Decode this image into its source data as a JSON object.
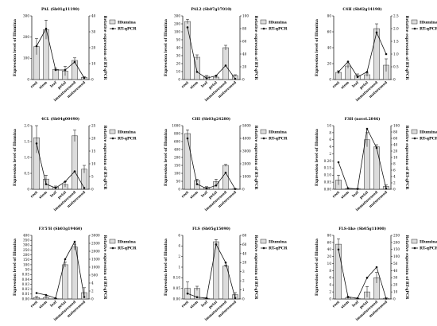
{
  "categories": [
    "root",
    "stem",
    "leaf",
    "petal",
    "immatureseed",
    "matureseed"
  ],
  "left_axis_label": "Expression level of Illumina",
  "right_axis_label": "Relative expression of RT-qPCR",
  "legend": {
    "bar": "Illumina",
    "line": "RT-qPCR"
  },
  "colors": {
    "bar": "#dcdcdc",
    "bar_stroke": "#333333",
    "line": "#111111"
  },
  "chart_data": [
    {
      "type": "bar",
      "title": "PAL (Sb01g11190)",
      "categories": [
        "root",
        "stem",
        "leaf",
        "petal",
        "immatureseed",
        "matureseed"
      ],
      "left_ticks": [
        0,
        100,
        200,
        300
      ],
      "left_ticks_display": [
        "0",
        "100",
        "200",
        "300"
      ],
      "right_ticks": [
        0,
        10,
        20,
        30,
        40
      ],
      "right_ticks_display": [
        "0",
        "10",
        "20",
        "30",
        "40"
      ],
      "series": [
        {
          "name": "Illumina",
          "axis": "left",
          "values": [
            155,
            235,
            48,
            40,
            90,
            10
          ],
          "errors": [
            38,
            45,
            5,
            22,
            12,
            3
          ]
        },
        {
          "name": "RT-qPCR",
          "axis": "right",
          "values": [
            21,
            32,
            6,
            6,
            11,
            1
          ]
        }
      ]
    },
    {
      "type": "bar",
      "title": "PAL2 (Sb07g37010)",
      "categories": [
        "root",
        "stem",
        "leaf",
        "petal",
        "immatureseed",
        "matureseed"
      ],
      "left_ticks": [
        0,
        10,
        20,
        30,
        40,
        50,
        100,
        200,
        300
      ],
      "left_ticks_display": [
        "0",
        "10",
        "20",
        "30",
        "40",
        "50",
        "100",
        "200",
        "300"
      ],
      "right_ticks": [
        0,
        20,
        40,
        60,
        80,
        100
      ],
      "right_ticks_display": [
        "0",
        "20",
        "40",
        "60",
        "80",
        "100"
      ],
      "series": [
        {
          "name": "Illumina",
          "axis": "left",
          "values": [
            230,
            28,
            4,
            3,
            40,
            5
          ],
          "errors": [
            28,
            3,
            1,
            1.5,
            3,
            1
          ]
        },
        {
          "name": "RT-qPCR",
          "axis": "right",
          "values": [
            82,
            12,
            2,
            6,
            22,
            1
          ]
        }
      ]
    },
    {
      "type": "bar",
      "title": "C4H (Sb02g14190)",
      "categories": [
        "root",
        "stem",
        "leaf",
        "petal",
        "immatureseed",
        "matureseed"
      ],
      "left_ticks": [
        0,
        20,
        40,
        60,
        80
      ],
      "left_ticks_display": [
        "0",
        "20",
        "40",
        "60",
        "80"
      ],
      "right_ticks": [
        0,
        0.5,
        1.0,
        1.5,
        2.0,
        2.5
      ],
      "right_ticks_display": [
        "0",
        "0.5",
        "1.0",
        "1.5",
        "2.0",
        "2.5"
      ],
      "series": [
        {
          "name": "Illumina",
          "axis": "left",
          "values": [
            9,
            17,
            5,
            6,
            64,
            18
          ],
          "errors": [
            2,
            3,
            2,
            2,
            6,
            8
          ]
        },
        {
          "name": "RT-qPCR",
          "axis": "right",
          "values": [
            0.3,
            0.7,
            0.1,
            0.3,
            1.85,
            1.0
          ]
        }
      ]
    },
    {
      "type": "bar",
      "title": "4CL (Sb04g00490)",
      "categories": [
        "root",
        "stem",
        "leaf",
        "petal",
        "immatureseed",
        "matureseed"
      ],
      "left_ticks": [
        0,
        0.5,
        1.0,
        1.5,
        2.0
      ],
      "left_ticks_display": [
        "0",
        "0.5",
        "1.0",
        "1.5",
        "2.0"
      ],
      "right_ticks": [
        0,
        5,
        10,
        15,
        20,
        25
      ],
      "right_ticks_display": [
        "0",
        "5",
        "10",
        "15",
        "20",
        "25"
      ],
      "series": [
        {
          "name": "Illumina",
          "axis": "left",
          "values": [
            1.62,
            0.32,
            0.07,
            0.15,
            1.68,
            0.63
          ],
          "errors": [
            0.48,
            0.12,
            0.03,
            0.08,
            0.18,
            0.12
          ]
        },
        {
          "name": "RT-qPCR",
          "axis": "right",
          "values": [
            18,
            2,
            0.5,
            3,
            7,
            0.5
          ]
        }
      ]
    },
    {
      "type": "bar",
      "title": "CHI (Sb03g24280)",
      "categories": [
        "root",
        "stem",
        "leaf",
        "petal",
        "immatureseed",
        "matureseed"
      ],
      "left_ticks": [
        0,
        50,
        100,
        150,
        200,
        400,
        600,
        800,
        1000
      ],
      "left_ticks_display": [
        "0",
        "50",
        "100",
        "150",
        "200",
        "400",
        "600",
        "800",
        "1000"
      ],
      "right_ticks": [
        0,
        1000,
        2000,
        3000,
        4000,
        5000
      ],
      "right_ticks_display": [
        "0",
        "1000",
        "2000",
        "3000",
        "4000",
        "5000"
      ],
      "series": [
        {
          "name": "Illumina",
          "axis": "left",
          "values": [
            800,
            55,
            12,
            48,
            150,
            2
          ],
          "errors": [
            95,
            8,
            4,
            15,
            6,
            1
          ]
        },
        {
          "name": "RT-qPCR",
          "axis": "right",
          "values": [
            4000,
            400,
            50,
            300,
            1300,
            20
          ]
        }
      ]
    },
    {
      "type": "bar",
      "title": "F3H (novel.2846)",
      "categories": [
        "root",
        "stem",
        "leaf",
        "petal",
        "immatureseed",
        "matureseed"
      ],
      "left_ticks": [
        0,
        0.05,
        0.1,
        0.15,
        0.2,
        2,
        4,
        6,
        8,
        10
      ],
      "left_ticks_display": [
        "0.00",
        "0.05",
        "0.10",
        "0.15",
        "0.20",
        "2",
        "4",
        "6",
        "8",
        "10"
      ],
      "right_ticks": [
        0,
        2,
        4,
        6,
        8,
        10,
        20,
        40,
        60,
        80,
        100
      ],
      "right_ticks_display": [
        "0",
        "2",
        "4",
        "6",
        "8",
        "10",
        "20",
        "40",
        "60",
        "80",
        "100"
      ],
      "series": [
        {
          "name": "Illumina",
          "axis": "left",
          "values": [
            0.065,
            0.005,
            0.003,
            6,
            4,
            0.02
          ],
          "errors": [
            0.035,
            0.003,
            0.002,
            2,
            0.6,
            0.01
          ]
        },
        {
          "name": "RT-qPCR",
          "axis": "right",
          "values": [
            8.5,
            0.3,
            0.1,
            90,
            30,
            0.2
          ]
        }
      ]
    },
    {
      "type": "bar",
      "title": "F3'5'H (Sb03g19460)",
      "categories": [
        "root",
        "stem",
        "leaf",
        "petal",
        "immatureseed",
        "matureseed"
      ],
      "left_ticks": [
        0,
        0.01,
        0.02,
        0.03,
        0.04,
        0.05,
        50,
        100,
        150,
        200,
        250,
        300,
        350,
        400
      ],
      "left_ticks_display": [
        "0.00",
        "0.01",
        "0.02",
        "0.03",
        "0.04",
        "0.05",
        "50",
        "100",
        "150",
        "200",
        "250",
        "300",
        "350",
        "400"
      ],
      "right_ticks": [
        0,
        2,
        4,
        500,
        1000,
        1500,
        2000,
        2500,
        3000
      ],
      "right_ticks_display": [
        "0",
        "2",
        "4",
        "500",
        "1000",
        "1500",
        "2000",
        "2500",
        "3000"
      ],
      "series": [
        {
          "name": "Illumina",
          "axis": "left",
          "values": [
            0.003,
            0.003,
            0.0005,
            100,
            280,
            0.013
          ],
          "errors": [
            0.002,
            0.002,
            0.0005,
            25,
            30,
            0.01
          ]
        },
        {
          "name": "RT-qPCR",
          "axis": "right",
          "values": [
            1.5,
            1.0,
            0.2,
            1500,
            2600,
            0.5
          ]
        }
      ]
    },
    {
      "type": "bar",
      "title": "FLS (Sb05g15090)",
      "categories": [
        "root",
        "stem",
        "leaf",
        "petal",
        "immatureseed",
        "matureseed"
      ],
      "left_ticks": [
        0,
        0.05,
        0.1,
        1,
        2,
        4,
        6
      ],
      "left_ticks_display": [
        "0.00",
        "0.05",
        "0.10",
        "1",
        "2",
        "4",
        "6"
      ],
      "right_ticks": [
        0,
        1,
        2,
        3,
        20,
        40,
        60,
        80
      ],
      "right_ticks_display": [
        "0",
        "1",
        "2",
        "3",
        "20",
        "40",
        "60",
        "80"
      ],
      "series": [
        {
          "name": "Illumina",
          "axis": "left",
          "values": [
            0.05,
            0.05,
            0.002,
            4.8,
            1.1,
            0.02
          ],
          "errors": [
            0.03,
            0.01,
            0.001,
            0.4,
            0.1,
            0.01
          ]
        },
        {
          "name": "RT-qPCR",
          "axis": "right",
          "values": [
            0.6,
            0.2,
            0.1,
            60,
            20,
            0.1
          ]
        }
      ]
    },
    {
      "type": "bar",
      "title": "FLS-like (Sb05g11000)",
      "categories": [
        "root",
        "stem",
        "leaf",
        "petal",
        "immatureseed",
        "matureseed"
      ],
      "left_ticks": [
        0,
        2,
        4,
        6,
        8,
        10,
        20,
        40,
        60,
        80
      ],
      "left_ticks_display": [
        "0",
        "2",
        "4",
        "6",
        "8",
        "10",
        "20",
        "40",
        "60",
        "80"
      ],
      "right_ticks": [
        0,
        10,
        20,
        30,
        40,
        50,
        100,
        150,
        200,
        250
      ],
      "right_ticks_display": [
        "0",
        "10",
        "20",
        "30",
        "40",
        "50",
        "100",
        "150",
        "200",
        "250"
      ],
      "series": [
        {
          "name": "Illumina",
          "axis": "left",
          "values": [
            55,
            0.3,
            0.1,
            2,
            6,
            0.2
          ],
          "errors": [
            15,
            0.2,
            0.1,
            1.5,
            1.5,
            0.1
          ]
        },
        {
          "name": "RT-qPCR",
          "axis": "right",
          "values": [
            150,
            3,
            1,
            30,
            45,
            0.5
          ]
        }
      ]
    }
  ]
}
